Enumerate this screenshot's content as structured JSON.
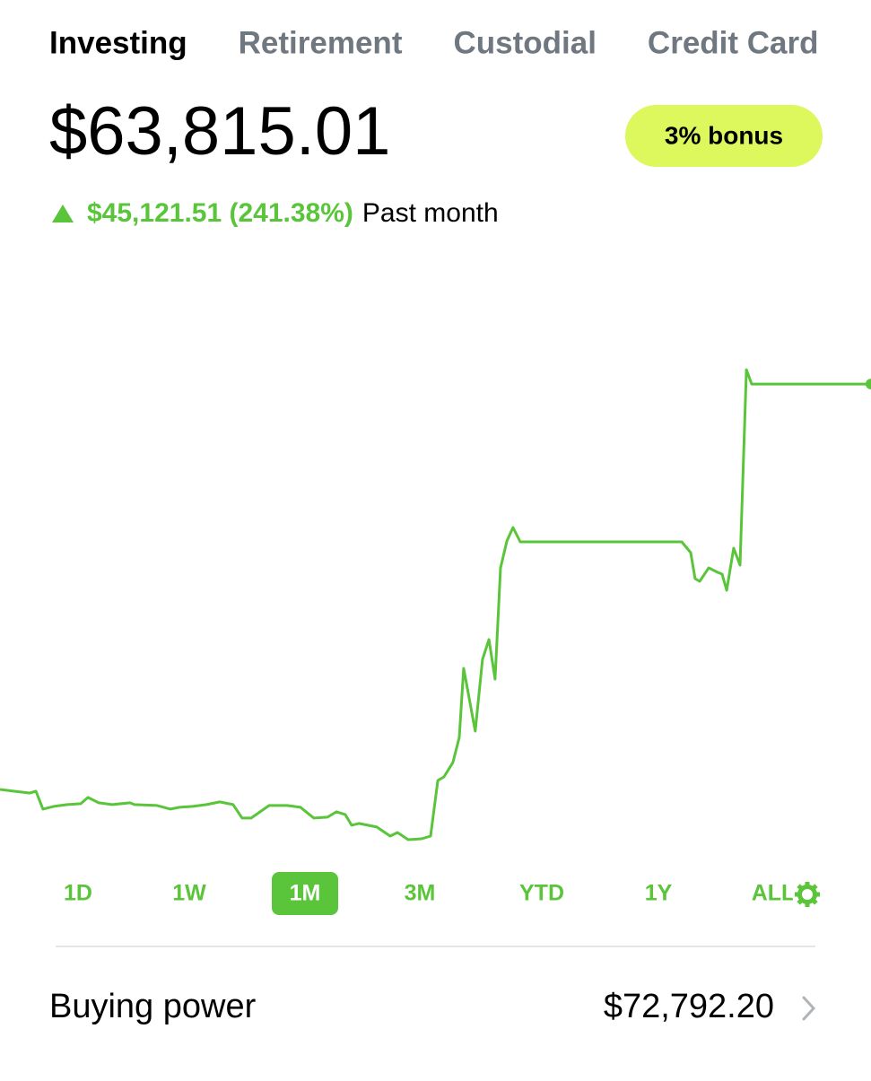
{
  "tabs": [
    "Investing",
    "Retirement",
    "Custodial",
    "Credit Card"
  ],
  "active_tab": 0,
  "balance": "$63,815.01",
  "bonus": "3% bonus",
  "change": {
    "amount": "$45,121.51 (241.38%)",
    "period": "Past month"
  },
  "ranges": [
    "1D",
    "1W",
    "1M",
    "3M",
    "YTD",
    "1Y",
    "ALL"
  ],
  "active_range": 2,
  "buying_power": {
    "label": "Buying power",
    "value": "$72,792.20"
  },
  "chart_data": {
    "type": "line",
    "color": "#5ac53b",
    "xlim": [
      0,
      30
    ],
    "ylim": [
      10700,
      78600
    ],
    "series": [
      {
        "x": [
          0,
          0.49,
          1.02,
          1.24,
          1.48,
          1.85,
          2.32,
          2.78,
          3.03,
          3.4,
          3.86,
          4.48,
          4.63,
          5.41,
          5.87,
          6.18,
          6.64,
          7.11,
          7.57,
          8.03,
          8.34,
          8.65,
          9.27,
          9.89,
          10.35,
          10.81,
          11.28,
          11.59,
          11.89,
          12.11,
          12.36,
          12.98,
          13.44,
          13.69,
          14.06,
          14.52,
          14.83,
          15.08,
          15.29,
          15.6,
          15.82,
          15.97,
          16.37,
          16.62,
          16.84,
          17.05,
          17.24,
          17.46,
          17.67,
          17.92,
          23.48,
          23.79,
          23.94,
          24.1,
          24.41,
          24.72,
          24.87,
          25.03,
          25.27,
          25.49,
          25.71,
          25.89,
          30
        ],
        "values": [
          18690,
          18490,
          18290,
          18490,
          16500,
          16800,
          17000,
          17100,
          17800,
          17200,
          17000,
          17200,
          17000,
          16900,
          16500,
          16700,
          16800,
          17000,
          17300,
          17000,
          15500,
          15500,
          16900,
          16900,
          16700,
          15500,
          15600,
          16200,
          15900,
          14700,
          14900,
          14500,
          13500,
          13900,
          13100,
          13200,
          13500,
          19690,
          20090,
          21690,
          24480,
          32170,
          25180,
          33170,
          35370,
          30970,
          43350,
          46350,
          47850,
          46250,
          46250,
          45050,
          42150,
          41850,
          43350,
          42850,
          42650,
          40860,
          45550,
          43650,
          65410,
          63815.01,
          63815.01
        ]
      }
    ]
  }
}
